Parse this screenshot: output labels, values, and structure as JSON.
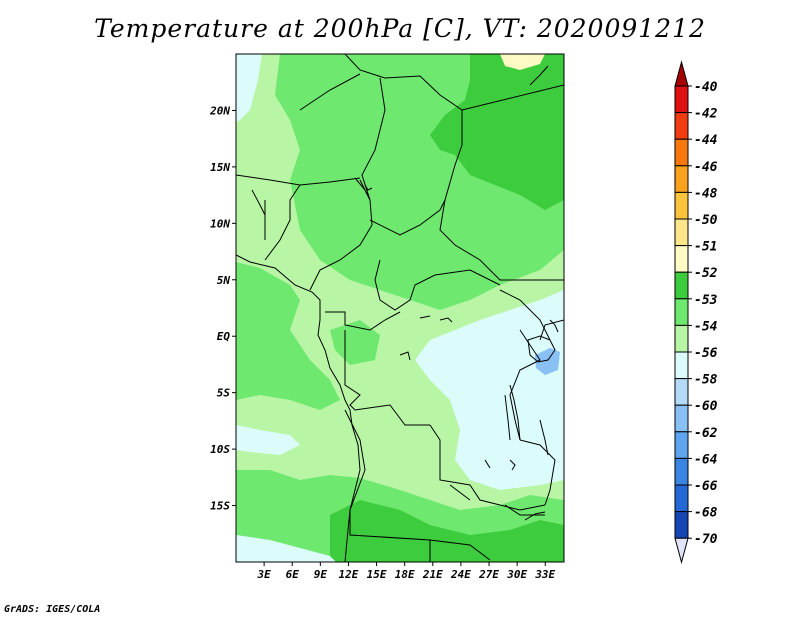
{
  "title": "Temperature at 200hPa [C], VT: 2020091212",
  "credit": "GrADS: IGES/COLA",
  "map": {
    "lon_range": [
      0,
      35
    ],
    "lat_range": [
      -20,
      25
    ],
    "lat_ticks": [
      {
        "value": 20,
        "label": "20N"
      },
      {
        "value": 15,
        "label": "15N"
      },
      {
        "value": 10,
        "label": "10N"
      },
      {
        "value": 5,
        "label": "5N"
      },
      {
        "value": 0,
        "label": "EQ"
      },
      {
        "value": -5,
        "label": "5S"
      },
      {
        "value": -10,
        "label": "10S"
      },
      {
        "value": -15,
        "label": "15S"
      }
    ],
    "lon_ticks": [
      {
        "value": 3,
        "label": "3E"
      },
      {
        "value": 6,
        "label": "6E"
      },
      {
        "value": 9,
        "label": "9E"
      },
      {
        "value": 12,
        "label": "12E"
      },
      {
        "value": 15,
        "label": "15E"
      },
      {
        "value": 18,
        "label": "18E"
      },
      {
        "value": 21,
        "label": "21E"
      },
      {
        "value": 24,
        "label": "24E"
      },
      {
        "value": 27,
        "label": "27E"
      },
      {
        "value": 30,
        "label": "30E"
      },
      {
        "value": 33,
        "label": "33E"
      }
    ]
  },
  "colorbar": {
    "levels": [
      {
        "label": "-40",
        "color": "#dd1111"
      },
      {
        "label": "-42",
        "color": "#f03c10"
      },
      {
        "label": "-44",
        "color": "#f7790e"
      },
      {
        "label": "-46",
        "color": "#f9a21e"
      },
      {
        "label": "-48",
        "color": "#fbc43c"
      },
      {
        "label": "-50",
        "color": "#fde68a"
      },
      {
        "label": "-51",
        "color": "#fdfac4"
      },
      {
        "label": "-52",
        "color": "#3dcc3d"
      },
      {
        "label": "-53",
        "color": "#6fe86f"
      },
      {
        "label": "-54",
        "color": "#b8f6a6"
      },
      {
        "label": "-56",
        "color": "#dcfbfb"
      },
      {
        "label": "-58",
        "color": "#b4daf8"
      },
      {
        "label": "-60",
        "color": "#8ac1f4"
      },
      {
        "label": "-62",
        "color": "#5ea4ee"
      },
      {
        "label": "-64",
        "color": "#3a84e2"
      },
      {
        "label": "-66",
        "color": "#2467d6"
      },
      {
        "label": "-68",
        "color": "#1546b4"
      },
      {
        "label": "-70",
        "color": "#0a1f8a"
      }
    ],
    "top_arrow_color": "#a50000",
    "bottom_arrow_color": "#e0e4f8"
  },
  "fill_colors": {
    "very_light_cyan": "#dcfbfb",
    "light_green": "#b8f6a6",
    "mid_green": "#6fe86f",
    "dark_green": "#3dcc3d",
    "pale_yellow": "#fdfac4",
    "light_blue": "#8ac1f4"
  }
}
